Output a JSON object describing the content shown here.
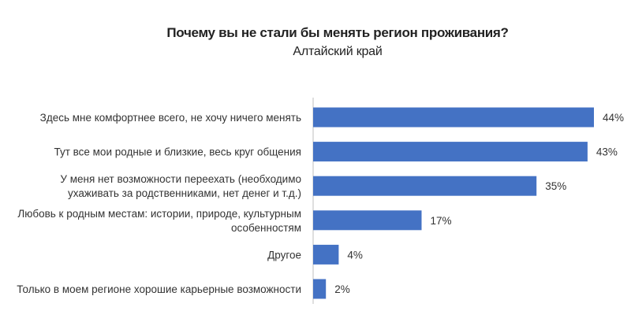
{
  "chart_data": {
    "type": "bar",
    "orientation": "horizontal",
    "title": "Почему вы не стали бы менять регион проживания?",
    "subtitle": "Алтайский край",
    "categories": [
      "Здесь мне комфортнее всего, не хочу ничего менять",
      "Тут все мои родные и близкие, весь круг общения",
      "У меня нет возможности переехать (необходимо ухаживать за родственниками, нет денег и т.д.)",
      "Любовь к родным местам: истории, природе, культурным особенностям",
      "Другое",
      "Только в моем регионе хорошие карьерные возможности"
    ],
    "category_lines": [
      [
        "Здесь мне комфортнее всего, не хочу ничего менять"
      ],
      [
        "Тут все мои родные и близкие, весь круг общения"
      ],
      [
        "У меня нет возможности переехать (необходимо",
        "ухаживать за родственниками, нет денег и т.д.)"
      ],
      [
        "Любовь к родным местам: истории, природе, культурным",
        "особенностям"
      ],
      [
        "Другое"
      ],
      [
        "Только в моем регионе хорошие карьерные возможности"
      ]
    ],
    "values": [
      44,
      43,
      35,
      17,
      4,
      2
    ],
    "value_labels": [
      "44%",
      "43%",
      "35%",
      "17%",
      "4%",
      "2%"
    ],
    "unit": "%",
    "xlim": [
      0,
      44
    ],
    "xlabel": "",
    "ylabel": "",
    "grid": false,
    "legend": "none"
  },
  "colors": {
    "bar": "#4472C4",
    "axis": "#bfbfbf",
    "text": "#333333",
    "title": "#222222"
  }
}
